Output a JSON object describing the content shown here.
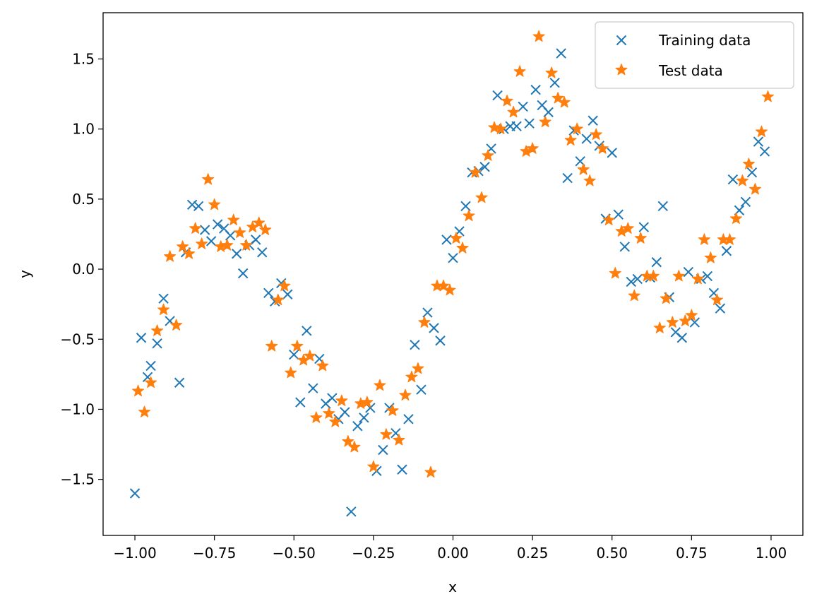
{
  "chart_data": {
    "type": "scatter",
    "title": "",
    "xlabel": "x",
    "ylabel": "y",
    "xlim": [
      -1.1,
      1.1
    ],
    "ylim": [
      -1.9,
      1.83
    ],
    "xticks": [
      -1.0,
      -0.75,
      -0.5,
      -0.25,
      0.0,
      0.25,
      0.5,
      0.75,
      1.0
    ],
    "xtick_labels": [
      "−1.00",
      "−0.75",
      "−0.50",
      "−0.25",
      "0.00",
      "0.25",
      "0.50",
      "0.75",
      "1.00"
    ],
    "yticks": [
      -1.5,
      -1.0,
      -0.5,
      0.0,
      0.5,
      1.0,
      1.5
    ],
    "ytick_labels": [
      "−1.5",
      "−1.0",
      "−0.5",
      "0.0",
      "0.5",
      "1.0",
      "1.5"
    ],
    "grid": false,
    "legend_position": "top-right",
    "series": [
      {
        "name": "Training data",
        "marker": "x",
        "color": "#1f77b4",
        "points": [
          [
            -1.0,
            -1.6
          ],
          [
            -0.98,
            -0.49
          ],
          [
            -0.96,
            -0.77
          ],
          [
            -0.95,
            -0.69
          ],
          [
            -0.93,
            -0.53
          ],
          [
            -0.91,
            -0.21
          ],
          [
            -0.89,
            -0.37
          ],
          [
            -0.86,
            -0.81
          ],
          [
            -0.84,
            0.12
          ],
          [
            -0.82,
            0.46
          ],
          [
            -0.8,
            0.45
          ],
          [
            -0.78,
            0.28
          ],
          [
            -0.76,
            0.2
          ],
          [
            -0.74,
            0.32
          ],
          [
            -0.72,
            0.29
          ],
          [
            -0.7,
            0.24
          ],
          [
            -0.68,
            0.11
          ],
          [
            -0.66,
            -0.03
          ],
          [
            -0.64,
            0.17
          ],
          [
            -0.62,
            0.21
          ],
          [
            -0.6,
            0.12
          ],
          [
            -0.58,
            -0.17
          ],
          [
            -0.56,
            -0.23
          ],
          [
            -0.54,
            -0.1
          ],
          [
            -0.52,
            -0.18
          ],
          [
            -0.5,
            -0.61
          ],
          [
            -0.48,
            -0.95
          ],
          [
            -0.46,
            -0.44
          ],
          [
            -0.44,
            -0.85
          ],
          [
            -0.42,
            -0.64
          ],
          [
            -0.4,
            -0.96
          ],
          [
            -0.38,
            -0.92
          ],
          [
            -0.36,
            -1.07
          ],
          [
            -0.34,
            -1.02
          ],
          [
            -0.32,
            -1.73
          ],
          [
            -0.3,
            -1.12
          ],
          [
            -0.28,
            -1.06
          ],
          [
            -0.26,
            -0.99
          ],
          [
            -0.24,
            -1.44
          ],
          [
            -0.22,
            -1.29
          ],
          [
            -0.2,
            -0.99
          ],
          [
            -0.18,
            -1.17
          ],
          [
            -0.16,
            -1.43
          ],
          [
            -0.14,
            -1.07
          ],
          [
            -0.12,
            -0.54
          ],
          [
            -0.1,
            -0.86
          ],
          [
            -0.08,
            -0.31
          ],
          [
            -0.06,
            -0.42
          ],
          [
            -0.04,
            -0.51
          ],
          [
            -0.02,
            0.21
          ],
          [
            0.0,
            0.08
          ],
          [
            0.02,
            0.27
          ],
          [
            0.04,
            0.45
          ],
          [
            0.06,
            0.69
          ],
          [
            0.08,
            0.7
          ],
          [
            0.1,
            0.73
          ],
          [
            0.12,
            0.86
          ],
          [
            0.14,
            1.24
          ],
          [
            0.16,
            1.0
          ],
          [
            0.18,
            1.02
          ],
          [
            0.2,
            1.02
          ],
          [
            0.22,
            1.16
          ],
          [
            0.24,
            1.04
          ],
          [
            0.26,
            1.28
          ],
          [
            0.28,
            1.17
          ],
          [
            0.3,
            1.12
          ],
          [
            0.32,
            1.33
          ],
          [
            0.34,
            1.54
          ],
          [
            0.36,
            0.65
          ],
          [
            0.38,
            0.99
          ],
          [
            0.4,
            0.77
          ],
          [
            0.42,
            0.93
          ],
          [
            0.44,
            1.06
          ],
          [
            0.46,
            0.88
          ],
          [
            0.48,
            0.36
          ],
          [
            0.5,
            0.83
          ],
          [
            0.52,
            0.39
          ],
          [
            0.54,
            0.16
          ],
          [
            0.56,
            -0.09
          ],
          [
            0.58,
            -0.07
          ],
          [
            0.6,
            0.3
          ],
          [
            0.62,
            -0.06
          ],
          [
            0.64,
            0.05
          ],
          [
            0.66,
            0.45
          ],
          [
            0.68,
            -0.2
          ],
          [
            0.7,
            -0.45
          ],
          [
            0.72,
            -0.49
          ],
          [
            0.74,
            -0.02
          ],
          [
            0.76,
            -0.38
          ],
          [
            0.78,
            -0.07
          ],
          [
            0.8,
            -0.05
          ],
          [
            0.82,
            -0.17
          ],
          [
            0.84,
            -0.28
          ],
          [
            0.86,
            0.13
          ],
          [
            0.88,
            0.64
          ],
          [
            0.9,
            0.42
          ],
          [
            0.92,
            0.48
          ],
          [
            0.94,
            0.69
          ],
          [
            0.96,
            0.91
          ],
          [
            0.98,
            0.84
          ]
        ]
      },
      {
        "name": "Test data",
        "marker": "*",
        "color": "#ff7f0e",
        "points": [
          [
            -0.99,
            -0.87
          ],
          [
            -0.97,
            -1.02
          ],
          [
            -0.95,
            -0.81
          ],
          [
            -0.93,
            -0.44
          ],
          [
            -0.91,
            -0.29
          ],
          [
            -0.89,
            0.09
          ],
          [
            -0.87,
            -0.4
          ],
          [
            -0.85,
            0.16
          ],
          [
            -0.83,
            0.11
          ],
          [
            -0.81,
            0.29
          ],
          [
            -0.79,
            0.18
          ],
          [
            -0.77,
            0.64
          ],
          [
            -0.75,
            0.46
          ],
          [
            -0.73,
            0.16
          ],
          [
            -0.71,
            0.17
          ],
          [
            -0.69,
            0.35
          ],
          [
            -0.67,
            0.26
          ],
          [
            -0.65,
            0.17
          ],
          [
            -0.63,
            0.3
          ],
          [
            -0.61,
            0.33
          ],
          [
            -0.59,
            0.28
          ],
          [
            -0.57,
            -0.55
          ],
          [
            -0.55,
            -0.22
          ],
          [
            -0.53,
            -0.12
          ],
          [
            -0.51,
            -0.74
          ],
          [
            -0.49,
            -0.55
          ],
          [
            -0.47,
            -0.65
          ],
          [
            -0.45,
            -0.62
          ],
          [
            -0.43,
            -1.06
          ],
          [
            -0.41,
            -0.69
          ],
          [
            -0.39,
            -1.03
          ],
          [
            -0.37,
            -1.09
          ],
          [
            -0.35,
            -0.94
          ],
          [
            -0.33,
            -1.23
          ],
          [
            -0.31,
            -1.27
          ],
          [
            -0.29,
            -0.96
          ],
          [
            -0.27,
            -0.95
          ],
          [
            -0.25,
            -1.41
          ],
          [
            -0.23,
            -0.83
          ],
          [
            -0.21,
            -1.18
          ],
          [
            -0.19,
            -1.01
          ],
          [
            -0.17,
            -1.22
          ],
          [
            -0.15,
            -0.9
          ],
          [
            -0.13,
            -0.77
          ],
          [
            -0.11,
            -0.71
          ],
          [
            -0.09,
            -0.38
          ],
          [
            -0.07,
            -1.45
          ],
          [
            -0.05,
            -0.12
          ],
          [
            -0.03,
            -0.12
          ],
          [
            -0.01,
            -0.15
          ],
          [
            0.01,
            0.22
          ],
          [
            0.03,
            0.15
          ],
          [
            0.05,
            0.38
          ],
          [
            0.07,
            0.69
          ],
          [
            0.09,
            0.51
          ],
          [
            0.11,
            0.81
          ],
          [
            0.13,
            1.01
          ],
          [
            0.15,
            1.0
          ],
          [
            0.17,
            1.2
          ],
          [
            0.19,
            1.12
          ],
          [
            0.21,
            1.41
          ],
          [
            0.23,
            0.84
          ],
          [
            0.25,
            0.86
          ],
          [
            0.27,
            1.66
          ],
          [
            0.29,
            1.05
          ],
          [
            0.31,
            1.4
          ],
          [
            0.33,
            1.22
          ],
          [
            0.35,
            1.19
          ],
          [
            0.37,
            0.92
          ],
          [
            0.39,
            1.0
          ],
          [
            0.41,
            0.71
          ],
          [
            0.43,
            0.63
          ],
          [
            0.45,
            0.96
          ],
          [
            0.47,
            0.86
          ],
          [
            0.49,
            0.35
          ],
          [
            0.51,
            -0.03
          ],
          [
            0.53,
            0.27
          ],
          [
            0.55,
            0.29
          ],
          [
            0.57,
            -0.19
          ],
          [
            0.59,
            0.22
          ],
          [
            0.61,
            -0.05
          ],
          [
            0.63,
            -0.05
          ],
          [
            0.65,
            -0.42
          ],
          [
            0.67,
            -0.21
          ],
          [
            0.69,
            -0.38
          ],
          [
            0.71,
            -0.05
          ],
          [
            0.73,
            -0.37
          ],
          [
            0.75,
            -0.33
          ],
          [
            0.77,
            -0.07
          ],
          [
            0.79,
            0.21
          ],
          [
            0.81,
            0.08
          ],
          [
            0.83,
            -0.22
          ],
          [
            0.85,
            0.21
          ],
          [
            0.87,
            0.21
          ],
          [
            0.89,
            0.36
          ],
          [
            0.91,
            0.63
          ],
          [
            0.93,
            0.75
          ],
          [
            0.95,
            0.57
          ],
          [
            0.97,
            0.98
          ],
          [
            0.99,
            1.23
          ]
        ]
      }
    ]
  }
}
